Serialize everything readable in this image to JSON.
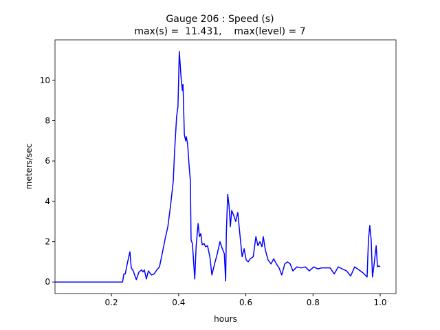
{
  "chart_data": {
    "type": "line",
    "title": "Gauge 206 : Speed (s)",
    "subtitle": "max(s) =  11.431,    max(level) = 7",
    "xlabel": "hours",
    "ylabel": "meters/sec",
    "xlim": [
      0.032,
      1.047
    ],
    "ylim": [
      -0.572,
      12.003
    ],
    "xticks": [
      0.2,
      0.4,
      0.6,
      0.8,
      {
        "value": 1,
        "label": "1.0"
      }
    ],
    "yticks": [
      0,
      2,
      4,
      6,
      8,
      10
    ],
    "grid": false,
    "series": [
      {
        "name": "speed",
        "color": "#0000ff",
        "x": [
          0.032,
          0.233,
          0.237,
          0.241,
          0.247,
          0.255,
          0.259,
          0.265,
          0.274,
          0.282,
          0.29,
          0.294,
          0.298,
          0.304,
          0.31,
          0.319,
          0.327,
          0.335,
          0.343,
          0.351,
          0.36,
          0.368,
          0.376,
          0.384,
          0.388,
          0.394,
          0.398,
          0.402,
          0.407,
          0.411,
          0.413,
          0.417,
          0.421,
          0.423,
          0.427,
          0.431,
          0.435,
          0.437,
          0.441,
          0.448,
          0.452,
          0.458,
          0.462,
          0.466,
          0.47,
          0.476,
          0.48,
          0.486,
          0.493,
          0.499,
          0.507,
          0.515,
          0.523,
          0.529,
          0.536,
          0.54,
          0.542,
          0.546,
          0.55,
          0.554,
          0.558,
          0.564,
          0.57,
          0.576,
          0.583,
          0.589,
          0.595,
          0.601,
          0.607,
          0.613,
          0.622,
          0.63,
          0.636,
          0.642,
          0.648,
          0.652,
          0.658,
          0.666,
          0.675,
          0.683,
          0.691,
          0.699,
          0.707,
          0.716,
          0.724,
          0.732,
          0.74,
          0.752,
          0.765,
          0.777,
          0.789,
          0.802,
          0.814,
          0.826,
          0.838,
          0.851,
          0.863,
          0.875,
          0.887,
          0.9,
          0.912,
          0.924,
          0.937,
          0.949,
          0.961,
          0.965,
          0.969,
          0.973,
          0.977,
          0.982,
          0.988,
          0.992,
          0.996,
          1.0
        ],
        "values": [
          0,
          0,
          0.4,
          0.4,
          0.9,
          1.5,
          0.7,
          0.55,
          0.12,
          0.5,
          0.6,
          0.5,
          0.6,
          0.15,
          0.55,
          0.35,
          0.4,
          0.6,
          0.75,
          1.4,
          2.15,
          2.75,
          3.8,
          5.0,
          6.5,
          8.2,
          8.7,
          11.431,
          10.2,
          9.5,
          9.8,
          7.3,
          7.0,
          7.2,
          6.8,
          5.8,
          5.0,
          2.1,
          1.9,
          0.15,
          1.75,
          2.9,
          2.25,
          2.4,
          1.85,
          1.9,
          1.75,
          1.8,
          1.25,
          0.35,
          0.9,
          1.4,
          2.0,
          1.7,
          1.4,
          0.05,
          2.4,
          4.35,
          3.8,
          2.75,
          3.55,
          3.3,
          3.0,
          3.45,
          2.25,
          1.25,
          1.65,
          1.1,
          1.0,
          1.15,
          1.25,
          2.25,
          1.8,
          2.0,
          1.75,
          2.25,
          1.6,
          1.1,
          0.9,
          1.15,
          0.9,
          0.7,
          0.35,
          0.9,
          1.0,
          0.9,
          0.55,
          0.75,
          0.7,
          0.75,
          0.55,
          0.75,
          0.65,
          0.7,
          0.7,
          0.7,
          0.4,
          0.75,
          0.65,
          0.55,
          0.3,
          0.75,
          0.6,
          0.45,
          0.25,
          2.1,
          2.8,
          2.1,
          0.25,
          0.9,
          1.8,
          0.75,
          0.8,
          0.75
        ]
      }
    ]
  }
}
